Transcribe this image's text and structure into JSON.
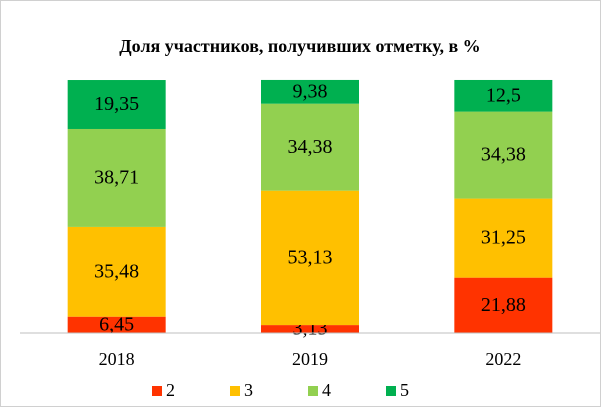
{
  "chart_data": {
    "type": "stacked_bar",
    "title": "Доля участников, получивших отметку, в %",
    "categories": [
      "2018",
      "2019",
      "2022"
    ],
    "series": [
      {
        "name": "2",
        "color": "#ff3300",
        "values": [
          6.45,
          3.13,
          21.88
        ],
        "value_labels": [
          "6,45",
          "3,13",
          "21,88"
        ]
      },
      {
        "name": "3",
        "color": "#ffc000",
        "values": [
          35.48,
          53.13,
          31.25
        ],
        "value_labels": [
          "35,48",
          "53,13",
          "31,25"
        ]
      },
      {
        "name": "4",
        "color": "#92d050",
        "values": [
          38.71,
          34.38,
          34.38
        ],
        "value_labels": [
          "38,71",
          "34,38",
          "34,38"
        ]
      },
      {
        "name": "5",
        "color": "#00b050",
        "values": [
          19.35,
          9.38,
          12.5
        ],
        "value_labels": [
          "19,35",
          "9,38",
          "12,5"
        ]
      }
    ],
    "ylim": [
      0,
      100
    ],
    "legend": "bottom"
  }
}
